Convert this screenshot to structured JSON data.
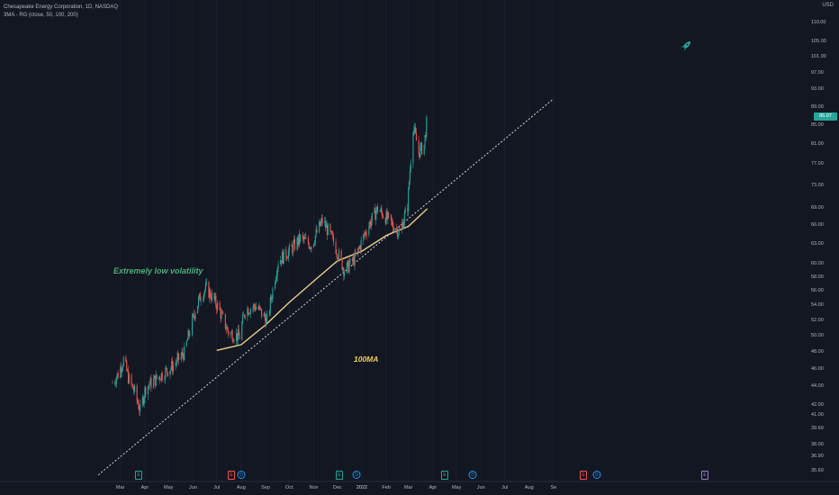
{
  "header": {
    "title": "Chesapeake Energy Corporation, 1D, NASDAQ",
    "indicator": "3MA - RG (close, 50, 100, 200)",
    "currency": "USD"
  },
  "price_axis": {
    "labels": [
      "110.00",
      "105.00",
      "101.00",
      "97.00",
      "93.00",
      "89.00",
      "85.00",
      "81.00",
      "77.00",
      "73.00",
      "69.00",
      "66.00",
      "63.00",
      "60.00",
      "58.00",
      "56.00",
      "54.00",
      "52.00",
      "50.00",
      "48.00",
      "46.00",
      "44.00",
      "42.00",
      "41.00",
      "39.60",
      "38.00",
      "36.90",
      "35.60"
    ],
    "current_price": "86.97"
  },
  "time_axis": {
    "labels": [
      "Mar",
      "Apr",
      "May",
      "Jun",
      "Jul",
      "Aug",
      "Sep",
      "Oct",
      "Nov",
      "Dec",
      "2022",
      "Feb",
      "Mar",
      "Apr",
      "May",
      "Jun",
      "Jul",
      "Aug",
      "Se"
    ]
  },
  "annotations": {
    "volatility": "Extremely low volatility",
    "ma_label": "100MA"
  },
  "events": [
    {
      "glyph": "E",
      "kind": "earnings"
    },
    {
      "glyph": "E",
      "kind": "earnings-red"
    },
    {
      "glyph": "D",
      "kind": "dividend"
    },
    {
      "glyph": "E",
      "kind": "earnings"
    },
    {
      "glyph": "D",
      "kind": "dividend"
    },
    {
      "glyph": "E",
      "kind": "earnings"
    },
    {
      "glyph": "D",
      "kind": "dividend"
    },
    {
      "glyph": "E",
      "kind": "earnings-red"
    },
    {
      "glyph": "D",
      "kind": "dividend"
    },
    {
      "glyph": "E",
      "kind": "earnings-future"
    }
  ],
  "icons": {
    "rocket": "rocket-icon",
    "currency": "currency-icon"
  },
  "colors": {
    "background": "#131722",
    "up": "#26a69a",
    "down": "#ef5350",
    "ma100": "#e9cf8d",
    "trendline": "#d1d4dc",
    "annotation_vol": "#4caf7a",
    "annotation_ma": "#f2d05c",
    "price_tag": "#26a69a"
  },
  "chart_data": {
    "type": "candlestick",
    "title": "Chesapeake Energy Corporation, 1D, NASDAQ",
    "x_range": [
      "2021-02",
      "2022-09"
    ],
    "y_range": [
      35.6,
      110
    ],
    "y_scale": "log",
    "candle_anchors": [
      {
        "date": "2021-02-19",
        "close": 44.5
      },
      {
        "date": "2021-02-26",
        "close": 45.5
      },
      {
        "date": "2021-03-05",
        "close": 47.2
      },
      {
        "date": "2021-03-12",
        "close": 44.8
      },
      {
        "date": "2021-03-19",
        "close": 43.5
      },
      {
        "date": "2021-03-26",
        "close": 41.5
      },
      {
        "date": "2021-04-02",
        "close": 44.0
      },
      {
        "date": "2021-04-16",
        "close": 45.0
      },
      {
        "date": "2021-05-07",
        "close": 46.5
      },
      {
        "date": "2021-05-21",
        "close": 48.0
      },
      {
        "date": "2021-06-04",
        "close": 53.5
      },
      {
        "date": "2021-06-11",
        "close": 55.5
      },
      {
        "date": "2021-06-18",
        "close": 56.5
      },
      {
        "date": "2021-07-02",
        "close": 54.0
      },
      {
        "date": "2021-07-16",
        "close": 50.5
      },
      {
        "date": "2021-07-30",
        "close": 50.0
      },
      {
        "date": "2021-08-06",
        "close": 53.5
      },
      {
        "date": "2021-08-20",
        "close": 54.0
      },
      {
        "date": "2021-09-03",
        "close": 52.0
      },
      {
        "date": "2021-09-17",
        "close": 60.5
      },
      {
        "date": "2021-10-01",
        "close": 62.0
      },
      {
        "date": "2021-10-15",
        "close": 64.0
      },
      {
        "date": "2021-10-29",
        "close": 63.0
      },
      {
        "date": "2021-11-12",
        "close": 67.0
      },
      {
        "date": "2021-11-26",
        "close": 63.5
      },
      {
        "date": "2021-12-10",
        "close": 59.0
      },
      {
        "date": "2021-12-24",
        "close": 61.0
      },
      {
        "date": "2022-01-07",
        "close": 65.5
      },
      {
        "date": "2022-01-21",
        "close": 69.0
      },
      {
        "date": "2022-02-04",
        "close": 67.0
      },
      {
        "date": "2022-02-18",
        "close": 65.0
      },
      {
        "date": "2022-02-28",
        "close": 69.5
      },
      {
        "date": "2022-03-07",
        "close": 85.0
      },
      {
        "date": "2022-03-14",
        "close": 79.5
      },
      {
        "date": "2022-03-21",
        "close": 81.0
      },
      {
        "date": "2022-03-25",
        "close": 86.97
      }
    ],
    "ma100": [
      {
        "date": "2021-07-01",
        "value": 48.3
      },
      {
        "date": "2021-08-01",
        "value": 49.0
      },
      {
        "date": "2021-09-01",
        "value": 51.5
      },
      {
        "date": "2021-10-01",
        "value": 54.5
      },
      {
        "date": "2021-11-01",
        "value": 57.5
      },
      {
        "date": "2021-12-01",
        "value": 60.5
      },
      {
        "date": "2022-01-01",
        "value": 62.0
      },
      {
        "date": "2022-02-01",
        "value": 64.5
      },
      {
        "date": "2022-03-01",
        "value": 66.0
      },
      {
        "date": "2022-03-25",
        "value": 69.0
      }
    ],
    "trendline": [
      {
        "date": "2021-02-01",
        "value": 35.3
      },
      {
        "date": "2022-09-01",
        "value": 91.0
      }
    ]
  }
}
